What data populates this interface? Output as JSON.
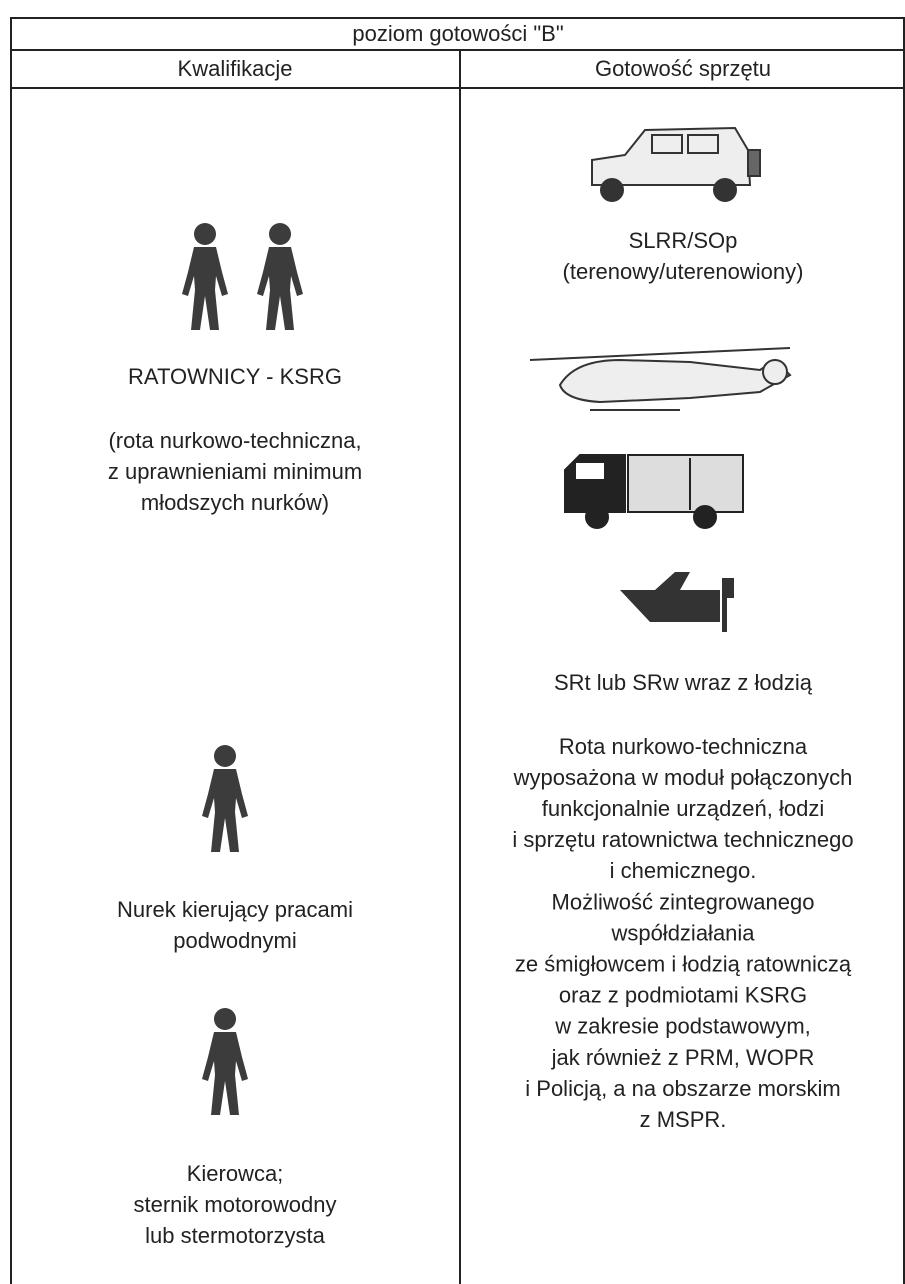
{
  "table": {
    "title": "poziom gotowości \"B\"",
    "headers": [
      "Kwalifikacje",
      "Gotowość sprzętu"
    ],
    "left": [
      {
        "lines": [
          "RATOWNICY - KSRG"
        ]
      },
      {
        "lines": [
          "(rota nurkowo-techniczna,",
          "z uprawnieniami minimum",
          "młodszych nurków)"
        ]
      },
      {
        "lines": [
          "Nurek kierujący pracami",
          "podwodnymi"
        ]
      },
      {
        "lines": [
          "Kierowca;",
          "sternik motorowodny",
          "lub stermotorzysta"
        ]
      }
    ],
    "right": [
      {
        "lines": [
          "SLRR/SOp",
          "(terenowy/uterenowiony)"
        ]
      },
      {
        "lines": [
          "SRt lub SRw wraz z łodzią"
        ]
      },
      {
        "lines": [
          "Rota nurkowo-techniczna",
          "wyposażona w moduł połączonych",
          "funkcjonalnie urządzeń, łodzi",
          "i sprzętu ratownictwa technicznego",
          "i chemicznego.",
          "Możliwość zintegrowanego",
          "współdziałania",
          "ze śmigłowcem i łodzią ratowniczą",
          "oraz z podmiotami KSRG",
          "w zakresie podstawowym,",
          "jak również z PRM, WOPR",
          "i Policją, a na obszarze morskim",
          "z MSPR."
        ]
      }
    ]
  }
}
